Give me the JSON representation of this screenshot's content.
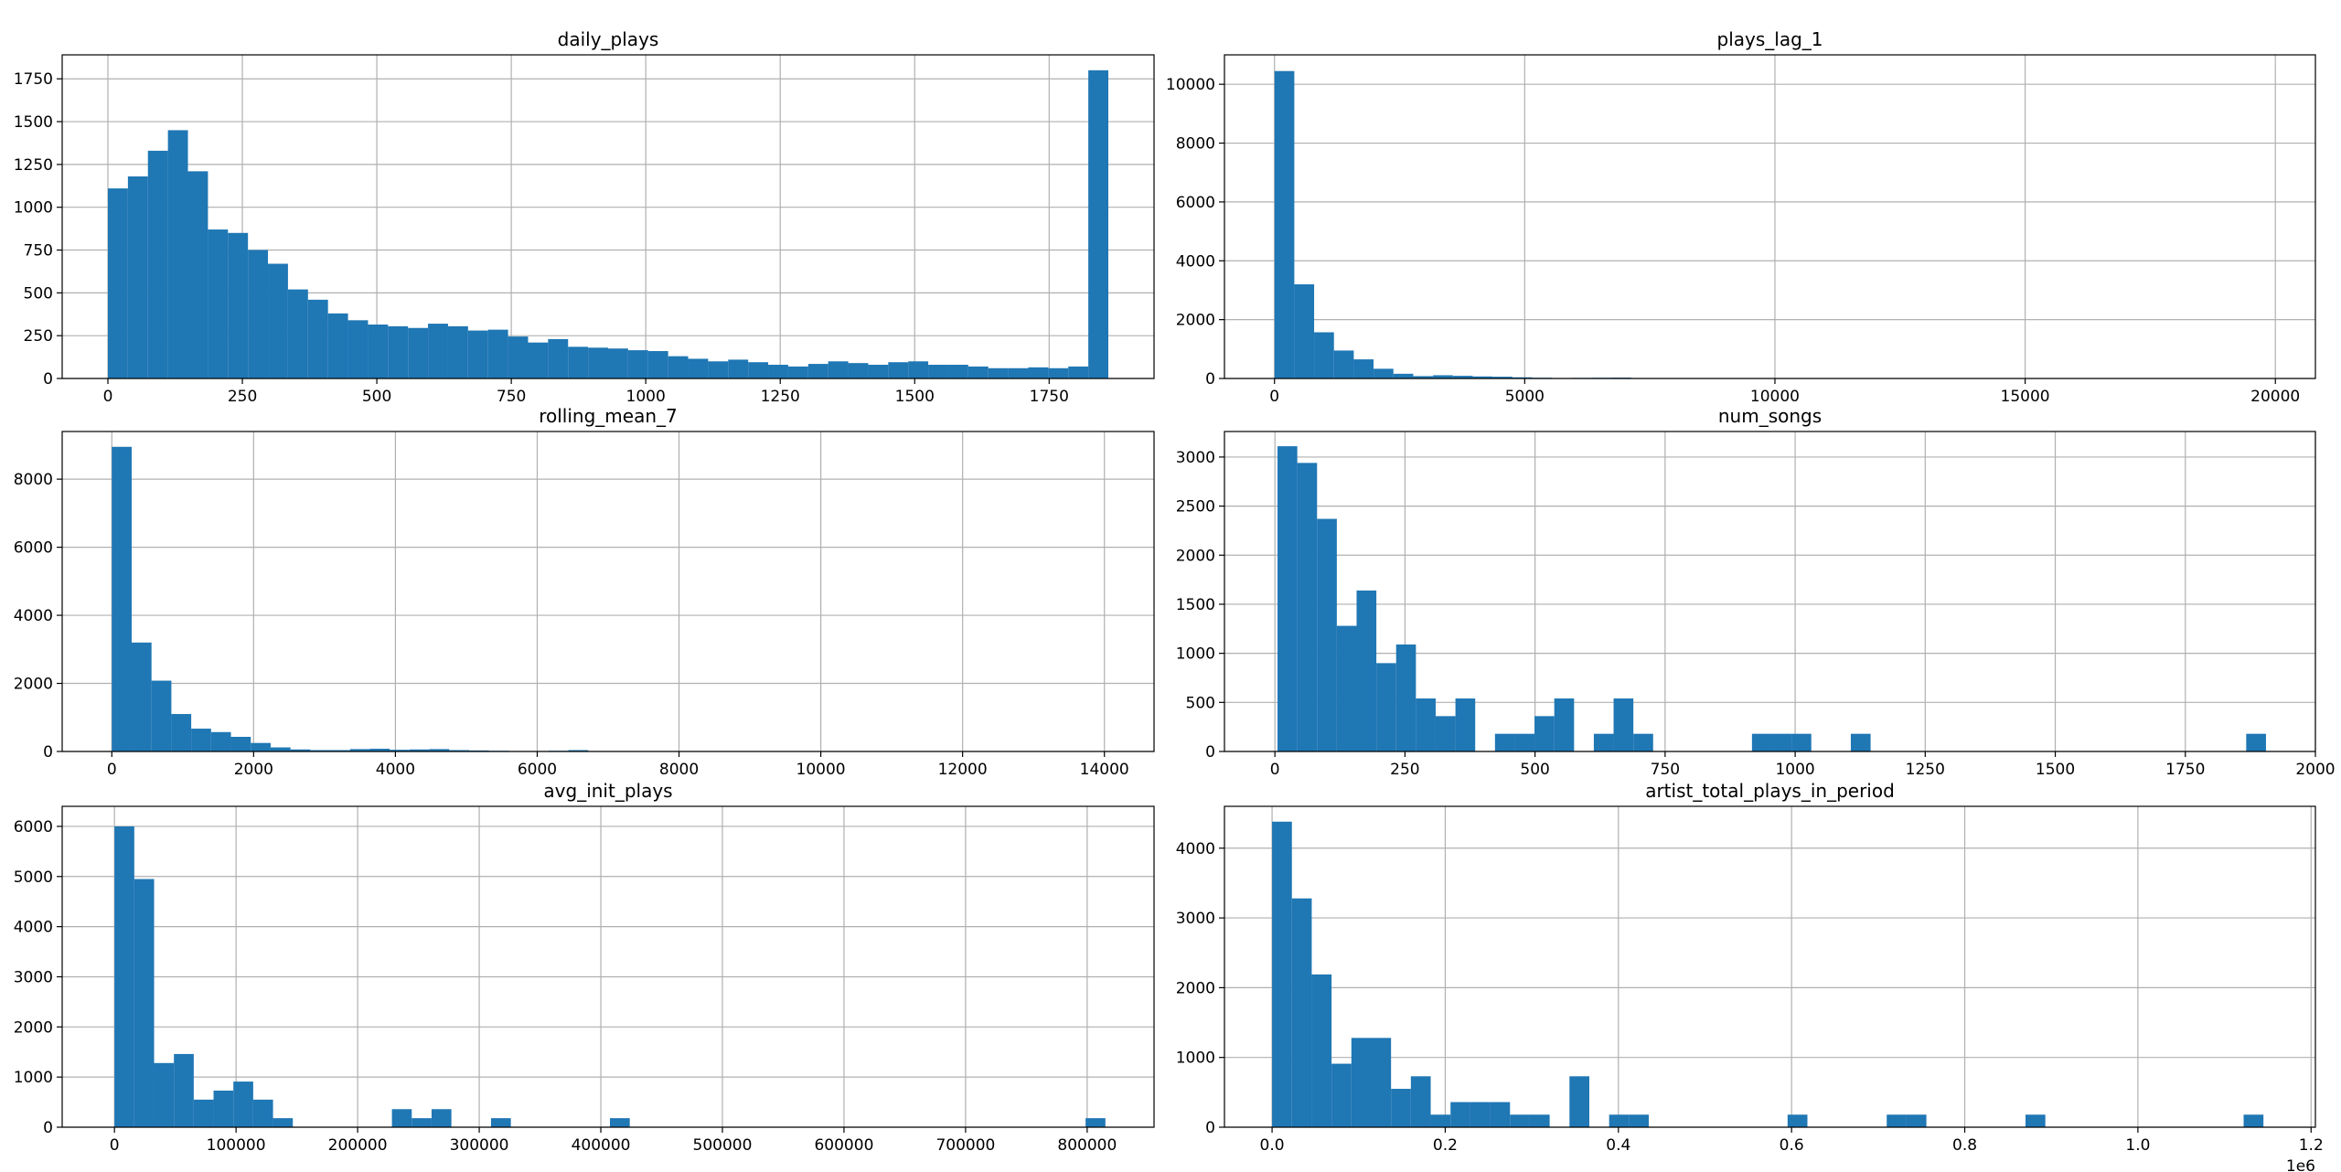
{
  "chart_data": [
    {
      "type": "bar",
      "subtype": "histogram",
      "title": "daily_plays",
      "xlabel": "",
      "ylabel": "",
      "grid": true,
      "color": "#1f77b4",
      "xlim": [
        -85,
        1945
      ],
      "ylim": [
        0,
        1890
      ],
      "xticks": [
        0,
        250,
        500,
        750,
        1000,
        1250,
        1500,
        1750
      ],
      "yticks": [
        0,
        250,
        500,
        750,
        1000,
        1250,
        1500,
        1750
      ],
      "xticklabels": [
        "0",
        "250",
        "500",
        "750",
        "1000",
        "1250",
        "1500",
        "1750"
      ],
      "yticklabels": [
        "0",
        "250",
        "500",
        "750",
        "1000",
        "1250",
        "1500",
        "1750"
      ],
      "bin_start": 0,
      "bin_width": 37.2,
      "values": [
        1110,
        1180,
        1330,
        1450,
        1210,
        870,
        850,
        750,
        670,
        520,
        460,
        380,
        340,
        315,
        305,
        295,
        320,
        305,
        280,
        285,
        245,
        210,
        230,
        185,
        180,
        175,
        165,
        160,
        130,
        115,
        100,
        110,
        95,
        80,
        70,
        85,
        100,
        90,
        80,
        95,
        100,
        80,
        80,
        70,
        60,
        60,
        65,
        60,
        70,
        1800
      ]
    },
    {
      "type": "bar",
      "subtype": "histogram",
      "title": "plays_lag_1",
      "xlabel": "",
      "ylabel": "",
      "grid": true,
      "color": "#1f77b4",
      "xlim": [
        -1000,
        20800
      ],
      "ylim": [
        0,
        11000
      ],
      "xticks": [
        0,
        5000,
        10000,
        15000,
        20000
      ],
      "yticks": [
        0,
        2000,
        4000,
        6000,
        8000,
        10000
      ],
      "xticklabels": [
        "0",
        "5000",
        "10000",
        "15000",
        "20000"
      ],
      "yticklabels": [
        "0",
        "2000",
        "4000",
        "6000",
        "8000",
        "10000"
      ],
      "bin_start": 0,
      "bin_width": 396,
      "values": [
        10450,
        3200,
        1570,
        950,
        650,
        330,
        160,
        80,
        110,
        90,
        70,
        60,
        40,
        25,
        15,
        20,
        25,
        30,
        10,
        5,
        5,
        3,
        2,
        2,
        1,
        1,
        1,
        0,
        0,
        0,
        0,
        0,
        0,
        0,
        0,
        0,
        0,
        0,
        0,
        0,
        0,
        0,
        0,
        0,
        0,
        0,
        0,
        0,
        0,
        0
      ]
    },
    {
      "type": "bar",
      "subtype": "histogram",
      "title": "rolling_mean_7",
      "xlabel": "",
      "ylabel": "",
      "grid": true,
      "color": "#1f77b4",
      "xlim": [
        -700,
        14700
      ],
      "ylim": [
        0,
        9400
      ],
      "xticks": [
        0,
        2000,
        4000,
        6000,
        8000,
        10000,
        12000,
        14000
      ],
      "yticks": [
        0,
        2000,
        4000,
        6000,
        8000
      ],
      "xticklabels": [
        "0",
        "2000",
        "4000",
        "6000",
        "8000",
        "10000",
        "12000",
        "14000"
      ],
      "yticklabels": [
        "0",
        "2000",
        "4000",
        "6000",
        "8000"
      ],
      "bin_start": 0,
      "bin_width": 280,
      "values": [
        8950,
        3200,
        2080,
        1100,
        670,
        570,
        430,
        250,
        120,
        60,
        40,
        40,
        70,
        80,
        50,
        60,
        70,
        40,
        30,
        20,
        10,
        10,
        20,
        40,
        10,
        5,
        5,
        3,
        2,
        2,
        1,
        1,
        1,
        1,
        1,
        1,
        1,
        0,
        0,
        0,
        0,
        0,
        0,
        0,
        0,
        0,
        0,
        0,
        0,
        0
      ]
    },
    {
      "type": "bar",
      "subtype": "histogram",
      "title": "num_songs",
      "xlabel": "",
      "ylabel": "",
      "grid": true,
      "color": "#1f77b4",
      "xlim": [
        -97,
        2000
      ],
      "ylim": [
        0,
        3260
      ],
      "xticks": [
        0,
        250,
        500,
        750,
        1000,
        1250,
        1500,
        1750,
        2000
      ],
      "yticks": [
        0,
        500,
        1000,
        1500,
        2000,
        2500,
        3000
      ],
      "xticklabels": [
        "0",
        "250",
        "500",
        "750",
        "1000",
        "1250",
        "1500",
        "1750",
        "2000"
      ],
      "yticklabels": [
        "0",
        "500",
        "1000",
        "1500",
        "2000",
        "2500",
        "3000"
      ],
      "bin_start": 5,
      "bin_width": 38,
      "values": [
        3110,
        2940,
        2370,
        1280,
        1640,
        900,
        1090,
        540,
        360,
        540,
        0,
        180,
        180,
        360,
        540,
        0,
        180,
        540,
        180,
        0,
        0,
        0,
        0,
        0,
        180,
        180,
        180,
        0,
        0,
        180,
        0,
        0,
        0,
        0,
        0,
        0,
        0,
        0,
        0,
        0,
        0,
        0,
        0,
        0,
        0,
        0,
        0,
        0,
        0,
        180
      ]
    },
    {
      "type": "bar",
      "subtype": "histogram",
      "title": "avg_init_plays",
      "xlabel": "",
      "ylabel": "",
      "grid": true,
      "color": "#1f77b4",
      "xlim": [
        -43000,
        855000
      ],
      "ylim": [
        0,
        6400
      ],
      "xticks": [
        0,
        100000,
        200000,
        300000,
        400000,
        500000,
        600000,
        700000,
        800000
      ],
      "yticks": [
        0,
        1000,
        2000,
        3000,
        4000,
        5000,
        6000
      ],
      "xticklabels": [
        "0",
        "100000",
        "200000",
        "300000",
        "400000",
        "500000",
        "600000",
        "700000",
        "800000"
      ],
      "yticklabels": [
        "0",
        "1000",
        "2000",
        "3000",
        "4000",
        "5000",
        "6000"
      ],
      "bin_start": 0,
      "bin_width": 16300,
      "values": [
        6000,
        4950,
        1280,
        1460,
        550,
        730,
        910,
        550,
        180,
        0,
        0,
        0,
        0,
        0,
        360,
        180,
        360,
        0,
        0,
        180,
        0,
        0,
        0,
        0,
        0,
        180,
        0,
        0,
        0,
        0,
        0,
        0,
        0,
        0,
        0,
        0,
        0,
        0,
        0,
        0,
        0,
        0,
        0,
        0,
        0,
        0,
        0,
        0,
        0,
        180
      ]
    },
    {
      "type": "bar",
      "subtype": "histogram",
      "title": "artist_total_plays_in_period",
      "xlabel": "",
      "ylabel": "",
      "grid": true,
      "color": "#1f77b4",
      "xlim": [
        -0.055,
        1.205
      ],
      "ylim": [
        0,
        4600
      ],
      "xticks": [
        0.0,
        0.2,
        0.4,
        0.6,
        0.8,
        1.0,
        1.2
      ],
      "yticks": [
        0,
        1000,
        2000,
        3000,
        4000
      ],
      "xticklabels": [
        "0.0",
        "0.2",
        "0.4",
        "0.6",
        "0.8",
        "1.0",
        "1.2"
      ],
      "yticklabels": [
        "0",
        "1000",
        "2000",
        "3000",
        "4000"
      ],
      "x_offset_label": "1e6",
      "bin_start": 0,
      "bin_width": 0.0229,
      "values": [
        4380,
        3280,
        2190,
        910,
        1280,
        1280,
        550,
        730,
        180,
        360,
        360,
        360,
        180,
        180,
        0,
        730,
        0,
        180,
        180,
        0,
        0,
        0,
        0,
        0,
        0,
        0,
        180,
        0,
        0,
        0,
        0,
        180,
        180,
        0,
        0,
        0,
        0,
        0,
        180,
        0,
        0,
        0,
        0,
        0,
        0,
        0,
        0,
        0,
        0,
        180
      ]
    }
  ]
}
